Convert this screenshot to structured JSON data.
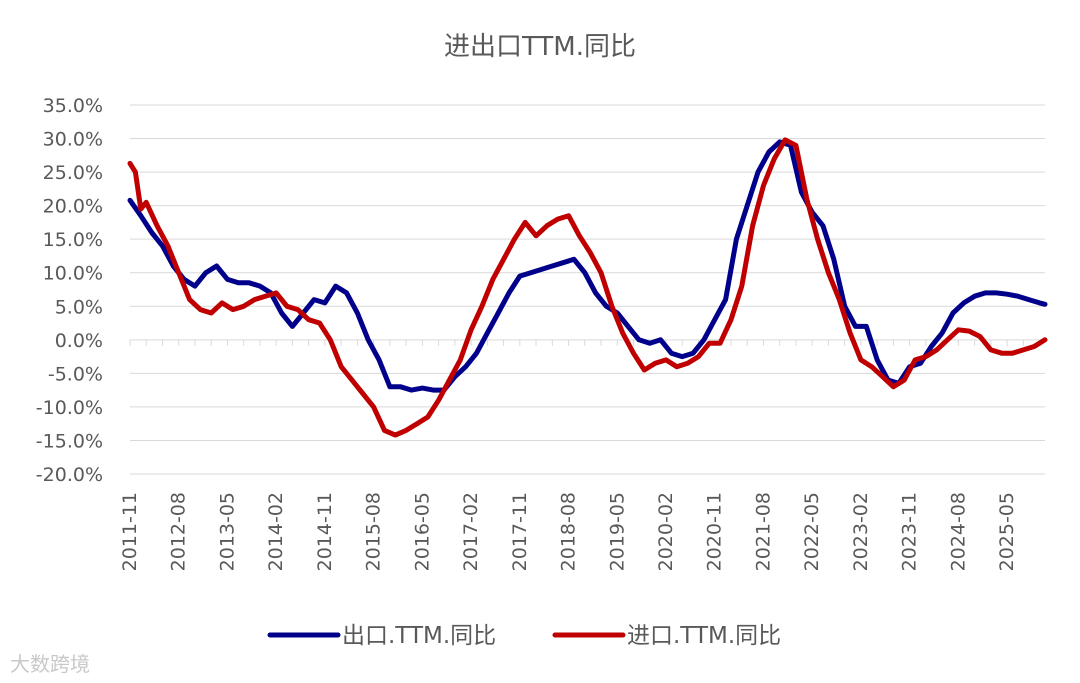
{
  "chart_data": {
    "type": "line",
    "title": "进出口TTM.同比",
    "y_ticks": [
      "35.0%",
      "30.0%",
      "25.0%",
      "20.0%",
      "15.0%",
      "10.0%",
      "5.0%",
      "0.0%",
      "-5.0%",
      "-10.0%",
      "-15.0%",
      "-20.0%"
    ],
    "ylim": [
      -20,
      35
    ],
    "x_ticks": [
      "2011-11",
      "2012-08",
      "2013-05",
      "2014-02",
      "2014-11",
      "2015-08",
      "2016-05",
      "2017-02",
      "2017-11",
      "2018-08",
      "2019-05",
      "2020-02",
      "2020-11",
      "2021-08",
      "2022-05",
      "2023-02",
      "2023-11",
      "2024-08",
      "2025-05"
    ],
    "x_range": [
      "2011-11",
      "2025-12"
    ],
    "grid": "horizontal",
    "legend_position": "bottom",
    "series": [
      {
        "name": "出口.TTM.同比",
        "color": "#00008b",
        "points": [
          [
            "2011-11",
            20.8
          ],
          [
            "2012-01",
            18.5
          ],
          [
            "2012-03",
            16
          ],
          [
            "2012-05",
            14
          ],
          [
            "2012-07",
            11
          ],
          [
            "2012-09",
            9
          ],
          [
            "2012-11",
            8
          ],
          [
            "2013-01",
            10
          ],
          [
            "2013-03",
            11
          ],
          [
            "2013-05",
            9
          ],
          [
            "2013-07",
            8.5
          ],
          [
            "2013-09",
            8.5
          ],
          [
            "2013-11",
            8
          ],
          [
            "2014-01",
            7
          ],
          [
            "2014-03",
            4
          ],
          [
            "2014-05",
            2
          ],
          [
            "2014-07",
            4
          ],
          [
            "2014-09",
            6
          ],
          [
            "2014-11",
            5.5
          ],
          [
            "2015-01",
            8
          ],
          [
            "2015-03",
            7
          ],
          [
            "2015-05",
            4
          ],
          [
            "2015-07",
            0
          ],
          [
            "2015-09",
            -3
          ],
          [
            "2015-11",
            -7
          ],
          [
            "2016-01",
            -7
          ],
          [
            "2016-03",
            -7.5
          ],
          [
            "2016-05",
            -7.2
          ],
          [
            "2016-07",
            -7.5
          ],
          [
            "2016-09",
            -7.5
          ],
          [
            "2016-11",
            -5.5
          ],
          [
            "2017-01",
            -4
          ],
          [
            "2017-03",
            -2
          ],
          [
            "2017-05",
            1
          ],
          [
            "2017-07",
            4
          ],
          [
            "2017-09",
            7
          ],
          [
            "2017-11",
            9.5
          ],
          [
            "2018-01",
            10
          ],
          [
            "2018-03",
            10.5
          ],
          [
            "2018-05",
            11
          ],
          [
            "2018-07",
            11.5
          ],
          [
            "2018-09",
            12
          ],
          [
            "2018-11",
            10
          ],
          [
            "2019-01",
            7
          ],
          [
            "2019-03",
            5
          ],
          [
            "2019-05",
            4
          ],
          [
            "2019-07",
            2
          ],
          [
            "2019-09",
            0
          ],
          [
            "2019-11",
            -0.5
          ],
          [
            "2020-01",
            0
          ],
          [
            "2020-03",
            -2
          ],
          [
            "2020-05",
            -2.5
          ],
          [
            "2020-07",
            -2
          ],
          [
            "2020-09",
            0
          ],
          [
            "2020-11",
            3
          ],
          [
            "2021-01",
            6
          ],
          [
            "2021-03",
            15
          ],
          [
            "2021-05",
            20
          ],
          [
            "2021-07",
            25
          ],
          [
            "2021-09",
            28
          ],
          [
            "2021-11",
            29.5
          ],
          [
            "2022-01",
            29
          ],
          [
            "2022-03",
            22
          ],
          [
            "2022-05",
            19
          ],
          [
            "2022-07",
            17
          ],
          [
            "2022-09",
            12
          ],
          [
            "2022-11",
            5
          ],
          [
            "2023-01",
            2
          ],
          [
            "2023-03",
            2
          ],
          [
            "2023-05",
            -3
          ],
          [
            "2023-07",
            -6
          ],
          [
            "2023-09",
            -6.5
          ],
          [
            "2023-11",
            -4
          ],
          [
            "2024-01",
            -3.5
          ],
          [
            "2024-03",
            -1
          ],
          [
            "2024-05",
            1
          ],
          [
            "2024-07",
            4
          ],
          [
            "2024-09",
            5.5
          ],
          [
            "2024-11",
            6.5
          ],
          [
            "2025-01",
            7
          ],
          [
            "2025-03",
            7
          ],
          [
            "2025-05",
            6.8
          ],
          [
            "2025-07",
            6.5
          ],
          [
            "2025-09",
            6
          ],
          [
            "2025-11",
            5.5
          ],
          [
            "2025-12",
            5.3
          ]
        ]
      },
      {
        "name": "进口.TTM.同比",
        "color": "#c00000",
        "points": [
          [
            "2011-11",
            26.3
          ],
          [
            "2011-12",
            25
          ],
          [
            "2012-01",
            19.5
          ],
          [
            "2012-02",
            20.5
          ],
          [
            "2012-04",
            17
          ],
          [
            "2012-06",
            14
          ],
          [
            "2012-08",
            10
          ],
          [
            "2012-10",
            6
          ],
          [
            "2012-12",
            4.5
          ],
          [
            "2013-02",
            4
          ],
          [
            "2013-04",
            5.5
          ],
          [
            "2013-06",
            4.5
          ],
          [
            "2013-08",
            5
          ],
          [
            "2013-10",
            6
          ],
          [
            "2013-12",
            6.5
          ],
          [
            "2014-02",
            7
          ],
          [
            "2014-04",
            5
          ],
          [
            "2014-06",
            4.5
          ],
          [
            "2014-08",
            3
          ],
          [
            "2014-10",
            2.5
          ],
          [
            "2014-12",
            0
          ],
          [
            "2015-02",
            -4
          ],
          [
            "2015-04",
            -6
          ],
          [
            "2015-06",
            -8
          ],
          [
            "2015-08",
            -10
          ],
          [
            "2015-10",
            -13.5
          ],
          [
            "2015-12",
            -14.2
          ],
          [
            "2016-02",
            -13.5
          ],
          [
            "2016-04",
            -12.5
          ],
          [
            "2016-06",
            -11.5
          ],
          [
            "2016-08",
            -9
          ],
          [
            "2016-10",
            -6
          ],
          [
            "2016-12",
            -3
          ],
          [
            "2017-02",
            1.5
          ],
          [
            "2017-04",
            5
          ],
          [
            "2017-06",
            9
          ],
          [
            "2017-08",
            12
          ],
          [
            "2017-10",
            15
          ],
          [
            "2017-12",
            17.5
          ],
          [
            "2018-02",
            15.5
          ],
          [
            "2018-04",
            17
          ],
          [
            "2018-06",
            18
          ],
          [
            "2018-08",
            18.5
          ],
          [
            "2018-10",
            15.5
          ],
          [
            "2018-12",
            13
          ],
          [
            "2019-02",
            10
          ],
          [
            "2019-04",
            5
          ],
          [
            "2019-06",
            1
          ],
          [
            "2019-08",
            -2
          ],
          [
            "2019-10",
            -4.5
          ],
          [
            "2019-12",
            -3.5
          ],
          [
            "2020-02",
            -3
          ],
          [
            "2020-04",
            -4
          ],
          [
            "2020-06",
            -3.5
          ],
          [
            "2020-08",
            -2.5
          ],
          [
            "2020-10",
            -0.5
          ],
          [
            "2020-12",
            -0.5
          ],
          [
            "2021-02",
            3
          ],
          [
            "2021-04",
            8
          ],
          [
            "2021-06",
            17
          ],
          [
            "2021-08",
            23
          ],
          [
            "2021-10",
            27
          ],
          [
            "2021-12",
            29.8
          ],
          [
            "2022-02",
            29
          ],
          [
            "2022-04",
            21
          ],
          [
            "2022-06",
            15
          ],
          [
            "2022-08",
            10
          ],
          [
            "2022-10",
            6
          ],
          [
            "2022-12",
            1
          ],
          [
            "2023-02",
            -3
          ],
          [
            "2023-04",
            -4
          ],
          [
            "2023-06",
            -5.5
          ],
          [
            "2023-08",
            -7
          ],
          [
            "2023-10",
            -6
          ],
          [
            "2023-12",
            -3
          ],
          [
            "2024-02",
            -2.5
          ],
          [
            "2024-04",
            -1.5
          ],
          [
            "2024-06",
            0
          ],
          [
            "2024-08",
            1.5
          ],
          [
            "2024-10",
            1.3
          ],
          [
            "2024-12",
            0.5
          ],
          [
            "2025-02",
            -1.5
          ],
          [
            "2025-04",
            -2
          ],
          [
            "2025-06",
            -2
          ],
          [
            "2025-08",
            -1.5
          ],
          [
            "2025-10",
            -1
          ],
          [
            "2025-12",
            0
          ]
        ]
      }
    ]
  },
  "watermark": "大数跨境"
}
